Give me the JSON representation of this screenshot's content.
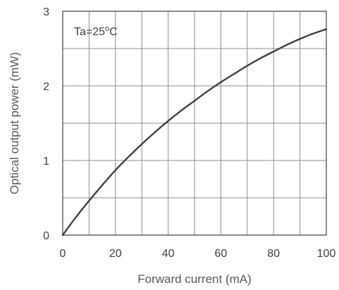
{
  "chart_data": {
    "type": "line",
    "title": "",
    "xlabel": "Forward current  (mA)",
    "ylabel": "Optical output power  (mW)",
    "xlim": [
      0,
      100
    ],
    "ylim": [
      0,
      3
    ],
    "x_ticks": [
      0,
      20,
      40,
      60,
      80,
      100
    ],
    "x_tick_labels": [
      "0",
      "20",
      "40",
      "60",
      "80",
      "100"
    ],
    "y_ticks": [
      0,
      1,
      2,
      3
    ],
    "y_tick_labels": [
      "0",
      "1",
      "2",
      "3"
    ],
    "x_minor_grid": [
      10,
      30,
      50,
      70,
      90
    ],
    "y_minor_grid": [
      0.5,
      1.5,
      2.5
    ],
    "grid": true,
    "legend": "none",
    "annotation": {
      "prefix": "Ta=25",
      "superscript": "o",
      "suffix": "C"
    },
    "series": [
      {
        "color": "#404040",
        "x": [
          0,
          5,
          10,
          15,
          20,
          25,
          30,
          35,
          40,
          45,
          50,
          55,
          60,
          65,
          70,
          75,
          80,
          85,
          90,
          95,
          100
        ],
        "y": [
          0,
          0.24,
          0.46,
          0.67,
          0.87,
          1.05,
          1.22,
          1.38,
          1.53,
          1.67,
          1.8,
          1.93,
          2.05,
          2.16,
          2.27,
          2.37,
          2.46,
          2.55,
          2.63,
          2.7,
          2.76
        ]
      }
    ]
  }
}
